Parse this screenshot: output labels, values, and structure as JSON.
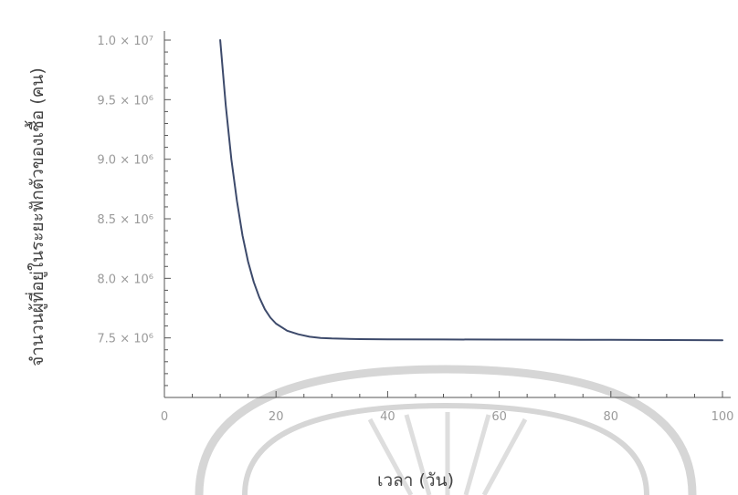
{
  "chart_data": {
    "type": "line",
    "title": "",
    "xlabel": "เวลา (วัน)",
    "ylabel": "จำนวนผู้ที่อยู่ในระยะฟักตัวของเชื้อ (คน)",
    "xlim": [
      0,
      100
    ],
    "ylim": [
      7000000,
      10000000
    ],
    "grid": false,
    "x_ticks": [
      {
        "value": 0,
        "label": "0"
      },
      {
        "value": 20,
        "label": "20"
      },
      {
        "value": 40,
        "label": "40"
      },
      {
        "value": 60,
        "label": "60"
      },
      {
        "value": 80,
        "label": "80"
      },
      {
        "value": 100,
        "label": "100"
      }
    ],
    "y_ticks": [
      {
        "value": 7500000,
        "label": "7.5 × 10⁶"
      },
      {
        "value": 8000000,
        "label": "8.0 × 10⁶"
      },
      {
        "value": 8500000,
        "label": "8.5 × 10⁶"
      },
      {
        "value": 9000000,
        "label": "9.0 × 10⁶"
      },
      {
        "value": 9500000,
        "label": "9.5 × 10⁶"
      },
      {
        "value": 10000000,
        "label": "1.0 × 10⁷"
      }
    ],
    "series": [
      {
        "color": "#3d4a6b",
        "x": [
          10,
          11,
          12,
          13,
          14,
          15,
          16,
          17,
          18,
          19,
          20,
          22,
          24,
          26,
          28,
          30,
          35,
          40,
          50,
          60,
          70,
          80,
          90,
          100
        ],
        "y": [
          10000000,
          9450000,
          9000000,
          8650000,
          8360000,
          8140000,
          7970000,
          7840000,
          7740000,
          7670000,
          7620000,
          7560000,
          7530000,
          7510000,
          7500000,
          7495000,
          7490000,
          7488000,
          7487000,
          7486000,
          7485000,
          7484000,
          7482000,
          7480000
        ]
      }
    ]
  }
}
